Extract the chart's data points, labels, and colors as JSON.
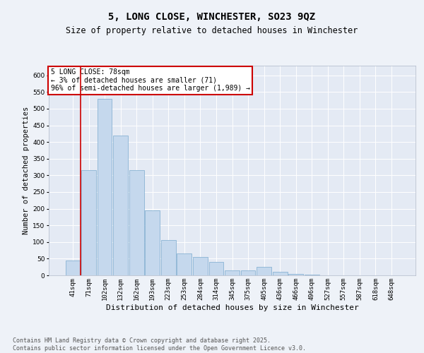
{
  "title": "5, LONG CLOSE, WINCHESTER, SO23 9QZ",
  "subtitle": "Size of property relative to detached houses in Winchester",
  "xlabel": "Distribution of detached houses by size in Winchester",
  "ylabel": "Number of detached properties",
  "categories": [
    "41sqm",
    "71sqm",
    "102sqm",
    "132sqm",
    "162sqm",
    "193sqm",
    "223sqm",
    "253sqm",
    "284sqm",
    "314sqm",
    "345sqm",
    "375sqm",
    "405sqm",
    "436sqm",
    "466sqm",
    "496sqm",
    "527sqm",
    "557sqm",
    "587sqm",
    "618sqm",
    "648sqm"
  ],
  "values": [
    45,
    315,
    530,
    420,
    315,
    195,
    105,
    65,
    55,
    40,
    15,
    15,
    25,
    10,
    5,
    3,
    1,
    0,
    0,
    0,
    0
  ],
  "bar_color": "#c5d8ed",
  "bar_edge_color": "#7aaace",
  "vline_x_index": 1,
  "vline_color": "#cc0000",
  "ylim": [
    0,
    630
  ],
  "yticks": [
    0,
    50,
    100,
    150,
    200,
    250,
    300,
    350,
    400,
    450,
    500,
    550,
    600
  ],
  "annotation_text": "5 LONG CLOSE: 78sqm\n← 3% of detached houses are smaller (71)\n96% of semi-detached houses are larger (1,989) →",
  "annotation_box_color": "#cc0000",
  "footnote": "Contains HM Land Registry data © Crown copyright and database right 2025.\nContains public sector information licensed under the Open Government Licence v3.0.",
  "bg_color": "#eef2f8",
  "plot_bg_color": "#e4eaf4",
  "title_fontsize": 10,
  "subtitle_fontsize": 8.5,
  "xlabel_fontsize": 8,
  "ylabel_fontsize": 7.5,
  "tick_fontsize": 6.5,
  "footnote_fontsize": 6
}
